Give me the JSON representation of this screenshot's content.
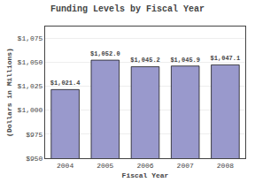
{
  "chart_data": {
    "type": "bar",
    "title": "Funding Levels by Fiscal Year",
    "xlabel": "Fiscal Year",
    "ylabel": "(Dollars in Millions)",
    "categories": [
      "2004",
      "2005",
      "2006",
      "2007",
      "2008"
    ],
    "values": [
      1021.4,
      1052.0,
      1045.2,
      1045.9,
      1047.1
    ],
    "value_labels": [
      "$1,021.4",
      "$1,052.0",
      "$1,045.2",
      "$1,045.9",
      "$1,047.1"
    ],
    "color": "#9999cc",
    "ylim": [
      950,
      1087
    ],
    "yticks": [
      {
        "value": 950,
        "label": "$950"
      },
      {
        "value": 975,
        "label": "$975"
      },
      {
        "value": 1000,
        "label": "$1,000"
      },
      {
        "value": 1025,
        "label": "$1,025"
      },
      {
        "value": 1050,
        "label": "$1,050"
      },
      {
        "value": 1075,
        "label": "$1,075"
      }
    ],
    "grid": true,
    "data_labels": true
  }
}
